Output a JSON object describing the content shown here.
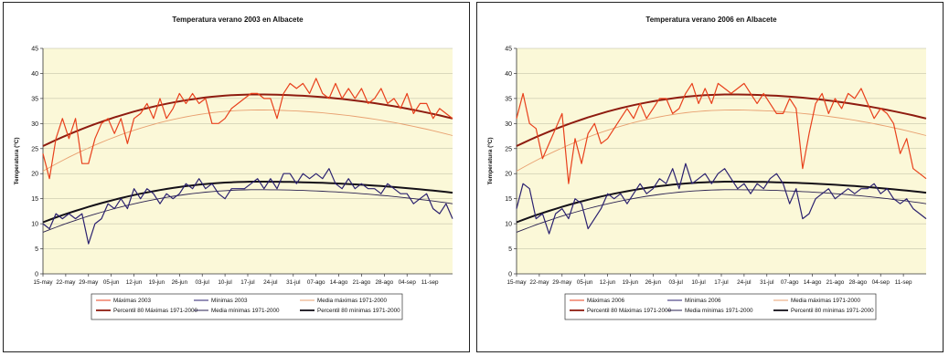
{
  "chart_data": [
    {
      "type": "line",
      "title": "Temperatura verano 2003 en Albacete",
      "ylabel": "Temperatura (ºC)",
      "ylim": [
        0,
        45
      ],
      "yticks": [
        0,
        5,
        10,
        15,
        20,
        25,
        30,
        35,
        40,
        45
      ],
      "x_range_days": [
        0,
        126
      ],
      "x_tick_labels": [
        "15-may",
        "22-may",
        "29-may",
        "05-jun",
        "12-jun",
        "19-jun",
        "26-jun",
        "03-jul",
        "10-jul",
        "17-jul",
        "24-jul",
        "31-jul",
        "07-ago",
        "14-ago",
        "21-ago",
        "28-ago",
        "04-sep",
        "11-sep"
      ],
      "grid": true,
      "legend_placement": "bottom",
      "legend": [
        "Máximas 2003",
        "Mínimas 2003",
        "Media máximas 1971-2000",
        "Percentil 80 Máximas 1971-2000",
        "Media mínimas 1971-2000",
        "Percentil 80 mínimas 1971-2000"
      ],
      "series": [
        {
          "name": "Máximas 2003",
          "color": "#e8401c",
          "x": [
            0,
            2,
            4,
            6,
            8,
            10,
            12,
            14,
            16,
            18,
            20,
            22,
            24,
            26,
            28,
            30,
            32,
            34,
            36,
            38,
            40,
            42,
            44,
            46,
            48,
            50,
            52,
            54,
            56,
            58,
            60,
            62,
            64,
            66,
            68,
            70,
            72,
            74,
            76,
            78,
            80,
            82,
            84,
            86,
            88,
            90,
            92,
            94,
            96,
            98,
            100,
            102,
            104,
            106,
            108,
            110,
            112,
            114,
            116,
            118,
            120,
            122,
            124,
            126
          ],
          "y": [
            24,
            19,
            27,
            31,
            27,
            31,
            22,
            22,
            27,
            30,
            31,
            28,
            31,
            26,
            31,
            32,
            34,
            31,
            35,
            31,
            33,
            36,
            34,
            36,
            34,
            35,
            30,
            30,
            31,
            33,
            34,
            35,
            36,
            36,
            35,
            35,
            31,
            36,
            38,
            37,
            38,
            36,
            39,
            36,
            35,
            38,
            35,
            37,
            35,
            37,
            34,
            35,
            37,
            34,
            35,
            33,
            36,
            32,
            34,
            34,
            31,
            33,
            32,
            31
          ]
        },
        {
          "name": "Mínimas 2003",
          "color": "#2b2170",
          "x": [
            0,
            2,
            4,
            6,
            8,
            10,
            12,
            14,
            16,
            18,
            20,
            22,
            24,
            26,
            28,
            30,
            32,
            34,
            36,
            38,
            40,
            42,
            44,
            46,
            48,
            50,
            52,
            54,
            56,
            58,
            60,
            62,
            64,
            66,
            68,
            70,
            72,
            74,
            76,
            78,
            80,
            82,
            84,
            86,
            88,
            90,
            92,
            94,
            96,
            98,
            100,
            102,
            104,
            106,
            108,
            110,
            112,
            114,
            116,
            118,
            120,
            122,
            124,
            126
          ],
          "y": [
            10,
            9,
            12,
            11,
            12,
            11,
            12,
            6,
            10,
            11,
            14,
            13,
            15,
            13,
            17,
            15,
            17,
            16,
            14,
            16,
            15,
            16,
            18,
            17,
            19,
            17,
            18,
            16,
            15,
            17,
            17,
            17,
            18,
            19,
            17,
            19,
            17,
            20,
            20,
            18,
            20,
            19,
            20,
            19,
            21,
            18,
            17,
            19,
            17,
            18,
            17,
            17,
            16,
            18,
            17,
            16,
            16,
            14,
            15,
            16,
            13,
            12,
            14,
            11
          ]
        },
        {
          "name": "Media máximas 1971-2000",
          "color": "#e8a070",
          "curve": {
            "start": 20.5,
            "peak": 32.7,
            "end": 27.6
          }
        },
        {
          "name": "Percentil 80 Máximas 1971-2000",
          "color": "#8e1c10",
          "curve": {
            "start": 25.5,
            "peak": 35.8,
            "end": 31.0
          }
        },
        {
          "name": "Media mínimas 1971-2000",
          "color": "#2a2150",
          "curve": {
            "start": 8.3,
            "peak": 16.8,
            "end": 14.0
          }
        },
        {
          "name": "Percentil 80 mínimas 1971-2000",
          "color": "#141018",
          "curve": {
            "start": 10.3,
            "peak": 18.4,
            "end": 16.2
          }
        }
      ]
    },
    {
      "type": "line",
      "title": "Temperatura verano 2006 en Albacete",
      "ylabel": "Temperatura (ºC)",
      "ylim": [
        0,
        45
      ],
      "yticks": [
        0,
        5,
        10,
        15,
        20,
        25,
        30,
        35,
        40,
        45
      ],
      "x_range_days": [
        0,
        126
      ],
      "x_tick_labels": [
        "15-may",
        "22-may",
        "29-may",
        "05-jun",
        "12-jun",
        "19-jun",
        "26-jun",
        "03-jul",
        "10-jul",
        "17-jul",
        "24-jul",
        "31-jul",
        "07-ago",
        "14-ago",
        "21-ago",
        "28-ago",
        "04-sep",
        "11-sep"
      ],
      "grid": true,
      "legend_placement": "bottom",
      "legend": [
        "Máximas 2006",
        "Mínimas 2006",
        "Media máximas 1971-2000",
        "Percentil 80 Máximas 1971-2000",
        "Media mínimas 1971-2000",
        "Percentil 80 mínimas 1971-2000"
      ],
      "series": [
        {
          "name": "Máximas 2006",
          "color": "#e8401c",
          "x": [
            0,
            2,
            4,
            6,
            8,
            10,
            12,
            14,
            16,
            18,
            20,
            22,
            24,
            26,
            28,
            30,
            32,
            34,
            36,
            38,
            40,
            42,
            44,
            46,
            48,
            50,
            52,
            54,
            56,
            58,
            60,
            62,
            64,
            66,
            68,
            70,
            72,
            74,
            76,
            78,
            80,
            82,
            84,
            86,
            88,
            90,
            92,
            94,
            96,
            98,
            100,
            102,
            104,
            106,
            108,
            110,
            112,
            114,
            116,
            118,
            120,
            122,
            124,
            126
          ],
          "y": [
            31,
            36,
            30,
            29,
            23,
            26,
            29,
            32,
            18,
            27,
            22,
            28,
            30,
            26,
            27,
            29,
            31,
            33,
            31,
            34,
            31,
            33,
            35,
            35,
            32,
            33,
            36,
            38,
            34,
            37,
            34,
            38,
            37,
            36,
            37,
            38,
            36,
            34,
            36,
            34,
            32,
            32,
            35,
            33,
            21,
            28,
            34,
            36,
            32,
            35,
            33,
            36,
            35,
            37,
            34,
            31,
            33,
            32,
            30,
            24,
            27,
            21,
            20,
            19
          ]
        },
        {
          "name": "Mínimas 2006",
          "color": "#2b2170",
          "x": [
            0,
            2,
            4,
            6,
            8,
            10,
            12,
            14,
            16,
            18,
            20,
            22,
            24,
            26,
            28,
            30,
            32,
            34,
            36,
            38,
            40,
            42,
            44,
            46,
            48,
            50,
            52,
            54,
            56,
            58,
            60,
            62,
            64,
            66,
            68,
            70,
            72,
            74,
            76,
            78,
            80,
            82,
            84,
            86,
            88,
            90,
            92,
            94,
            96,
            98,
            100,
            102,
            104,
            106,
            108,
            110,
            112,
            114,
            116,
            118,
            120,
            122,
            124,
            126
          ],
          "y": [
            13,
            18,
            17,
            11,
            12,
            8,
            12,
            13,
            11,
            15,
            14,
            9,
            11,
            13,
            16,
            15,
            16,
            14,
            16,
            18,
            16,
            17,
            19,
            18,
            21,
            17,
            22,
            18,
            19,
            20,
            18,
            20,
            21,
            19,
            17,
            18,
            16,
            18,
            17,
            19,
            20,
            18,
            14,
            17,
            11,
            12,
            15,
            16,
            17,
            15,
            16,
            17,
            16,
            17,
            17,
            18,
            16,
            17,
            15,
            14,
            15,
            13,
            12,
            11
          ]
        },
        {
          "name": "Media máximas 1971-2000",
          "color": "#e8a070",
          "curve": {
            "start": 20.5,
            "peak": 32.7,
            "end": 27.6
          }
        },
        {
          "name": "Percentil 80 Máximas 1971-2000",
          "color": "#8e1c10",
          "curve": {
            "start": 25.5,
            "peak": 35.8,
            "end": 31.0
          }
        },
        {
          "name": "Media mínimas 1971-2000",
          "color": "#2a2150",
          "curve": {
            "start": 8.3,
            "peak": 16.8,
            "end": 14.0
          }
        },
        {
          "name": "Percentil 80 mínimas 1971-2000",
          "color": "#141018",
          "curve": {
            "start": 10.3,
            "peak": 18.4,
            "end": 16.2
          }
        }
      ]
    }
  ]
}
